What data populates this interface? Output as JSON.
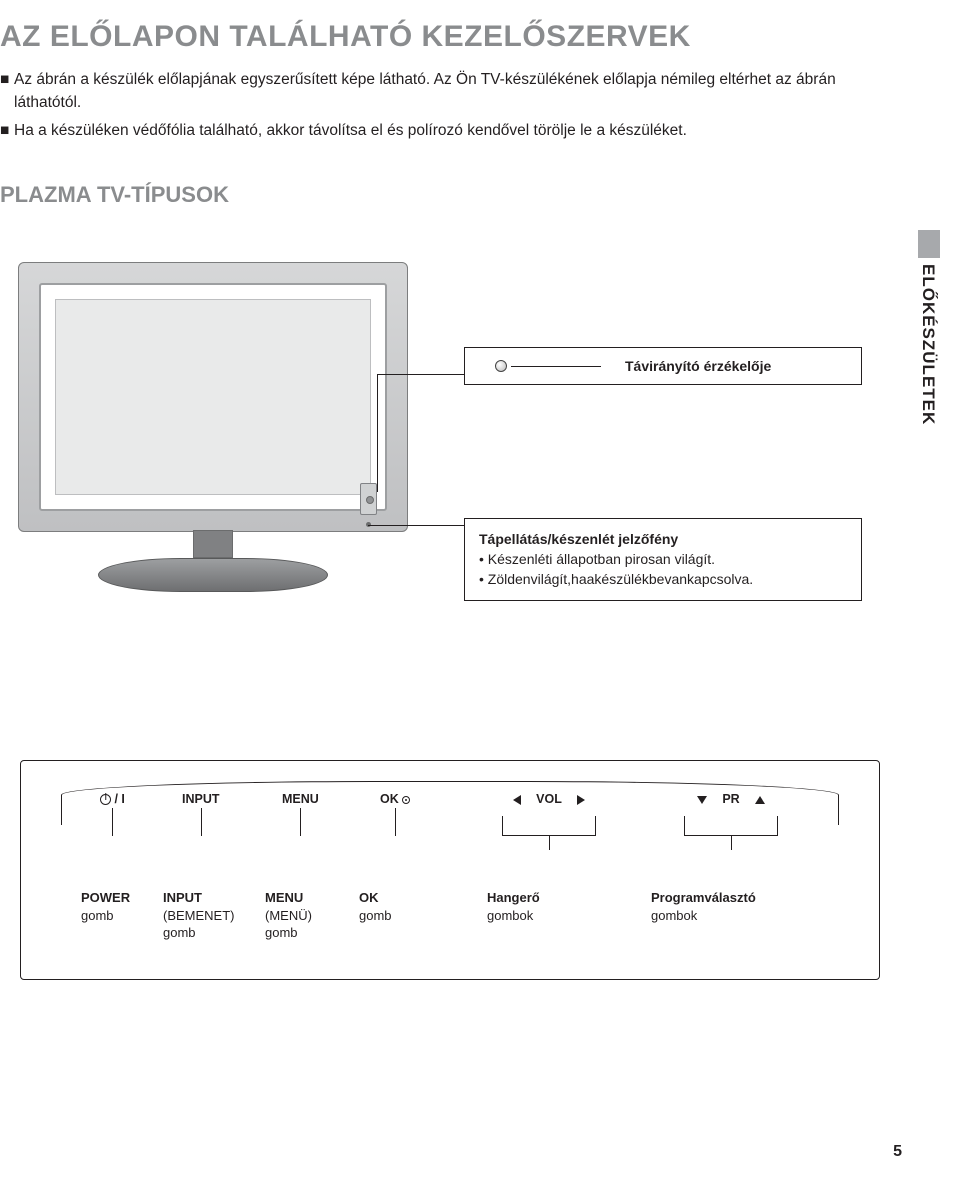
{
  "title": "AZ ELŐLAPON TALÁLHATÓ KEZELŐSZERVEK",
  "intro": {
    "line1": "Az ábrán a készülék előlapjának egyszerűsített képe látható. Az Ön TV-készülékének előlapja némileg eltérhet az ábrán láthatótól.",
    "line2": "Ha a készüléken védőfólia található, akkor távolítsa el és polírozó kendővel törölje le a készüléket."
  },
  "section_title": "PLAZMA TV-TÍPUSOK",
  "side_tab": "ELŐKÉSZÜLETEK",
  "callouts": {
    "remote": "Távirányító érzékelője",
    "power_head": "Tápellátás/készenlét jelzőfény",
    "power_b1": "• Készenléti állapotban pirosan világít.",
    "power_b2": "• Zöldenvilágít,haakészülékbevankapcsolva."
  },
  "controls": {
    "power_glyph": "/ I",
    "input": "INPUT",
    "menu": "MENU",
    "ok": "OK",
    "vol": "VOL",
    "pr": "PR"
  },
  "labels": {
    "power": {
      "l1": "POWER",
      "l2": "gomb"
    },
    "input": {
      "l1": "INPUT",
      "l2a": "(BEMENET)",
      "l2b": "gomb"
    },
    "menu": {
      "l1": "MENU",
      "l2a": "(MENÜ)",
      "l2b": "gomb"
    },
    "ok": {
      "l1": "OK",
      "l2": "gomb"
    },
    "vol": {
      "l1": "Hangerő",
      "l2": "gombok"
    },
    "pr": {
      "l1": "Programválasztó",
      "l2": "gombok"
    }
  },
  "page_number": "5",
  "colors": {
    "title_gray": "#8a8c8e",
    "text": "#231f20",
    "tab_gray": "#a7a9ac"
  }
}
